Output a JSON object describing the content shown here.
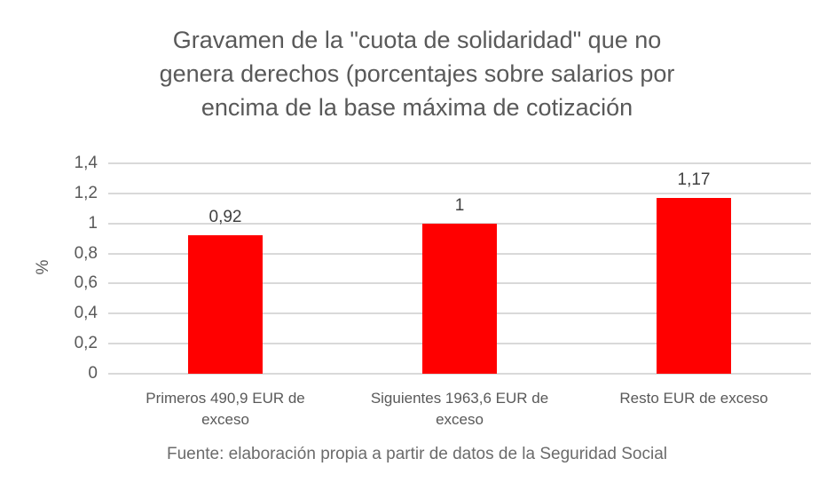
{
  "title_lines": [
    "Gravamen de la \"cuota de solidaridad\" que no",
    "genera derechos (porcentajes sobre salarios por",
    "encima de la base máxima de cotización"
  ],
  "source": "Fuente: elaboración propia a partir de datos de la Seguridad Social",
  "colors": {
    "bar": "#FF0000",
    "gridline": "#D9D9D9",
    "title_text": "#595959",
    "axis_text": "#595959",
    "data_label_text": "#404040",
    "source_text": "#6b6b6b"
  },
  "chart_data": {
    "type": "bar",
    "title": "Gravamen de la \"cuota de solidaridad\" que no genera derechos (porcentajes sobre salarios por encima de la base máxima de cotización",
    "categories": [
      "Primeros 490,9 EUR de exceso",
      "Siguientes 1963,6 EUR de exceso",
      "Resto EUR de exceso"
    ],
    "values": [
      0.92,
      1,
      1.17
    ],
    "value_labels": [
      "0,92",
      "1",
      "1,17"
    ],
    "xlabel": "",
    "ylabel": "%",
    "ylim": [
      0,
      1.4
    ],
    "yticks": [
      0,
      0.2,
      0.4,
      0.6,
      0.8,
      1,
      1.2,
      1.4
    ],
    "ytick_labels": [
      "0",
      "0,2",
      "0,4",
      "0,6",
      "0,8",
      "1",
      "1,2",
      "1,4"
    ],
    "grid": true,
    "legend": false,
    "bar_color": "#FF0000",
    "annotation": "Fuente: elaboración propia a partir de datos de la Seguridad Social"
  }
}
